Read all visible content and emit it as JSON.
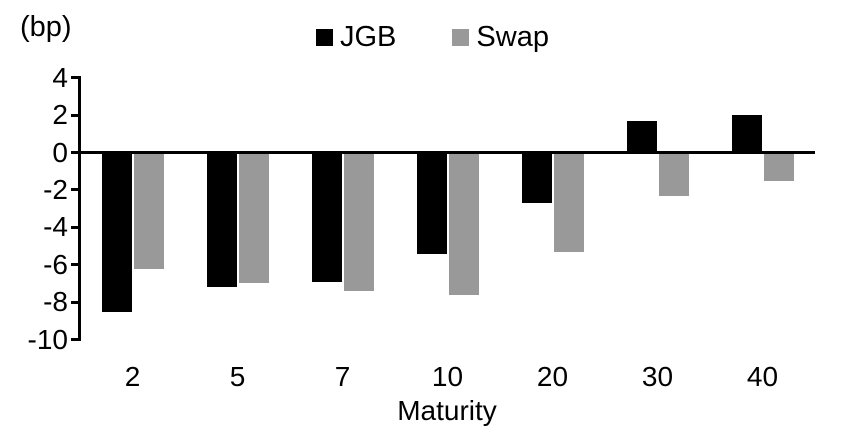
{
  "chart_data": {
    "type": "bar",
    "title": "",
    "unit_label": "(bp)",
    "xlabel": "Maturity",
    "categories": [
      "2",
      "5",
      "7",
      "10",
      "20",
      "30",
      "40"
    ],
    "series": [
      {
        "name": "JGB",
        "color": "#000000",
        "values": [
          -8.5,
          -7.2,
          -6.9,
          -5.4,
          -2.7,
          1.7,
          2.0
        ]
      },
      {
        "name": "Swap",
        "color": "#999999",
        "values": [
          -6.2,
          -7.0,
          -7.4,
          -7.6,
          -5.3,
          -2.3,
          -1.5
        ]
      }
    ],
    "ylim": [
      -10,
      4
    ],
    "yticks": [
      4,
      2,
      0,
      -2,
      -4,
      -6,
      -8,
      -10
    ],
    "ytick_labels": [
      "4",
      "2",
      "0",
      "-2",
      "-4",
      "-6",
      "-8",
      "-10"
    ],
    "grid": false,
    "legend_position": "top-center",
    "axis_color": "#000000",
    "background_color": "#ffffff"
  }
}
